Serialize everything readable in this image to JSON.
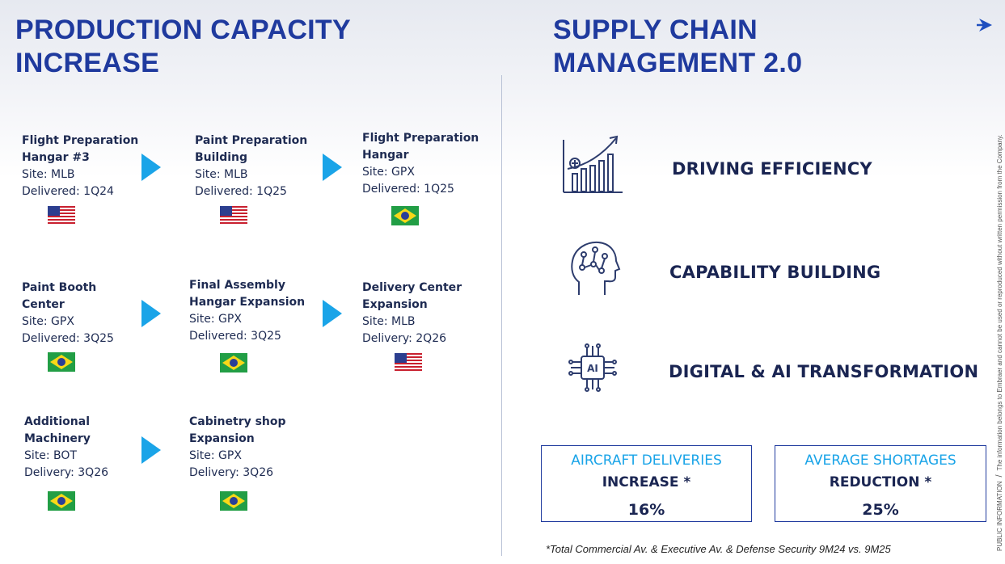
{
  "left_title": [
    "PRODUCTION CAPACITY",
    "INCREASE"
  ],
  "right_title": [
    "SUPPLY CHAIN",
    "MANAGEMENT 2.0"
  ],
  "nav": {
    "next_icon": "arrow-right-icon"
  },
  "projects": [
    {
      "name": [
        "Flight Preparation",
        "Hangar #3"
      ],
      "site": "Site: MLB",
      "date": "Delivered: 1Q24",
      "flag": "us-flag-icon"
    },
    {
      "name": [
        "Paint Preparation",
        "Building"
      ],
      "site": "Site: MLB",
      "date": "Delivered: 1Q25",
      "flag": "us-flag-icon"
    },
    {
      "name": [
        "Flight Preparation",
        "Hangar"
      ],
      "site": "Site: GPX",
      "date": "Delivered: 1Q25",
      "flag": "brazil-flag-icon"
    },
    {
      "name": [
        "Paint Booth",
        "Center"
      ],
      "site": "Site: GPX",
      "date": "Delivered: 3Q25",
      "flag": "brazil-flag-icon"
    },
    {
      "name": [
        "Final Assembly",
        "Hangar Expansion"
      ],
      "site": "Site: GPX",
      "date": "Delivered: 3Q25",
      "flag": "brazil-flag-icon"
    },
    {
      "name": [
        "Delivery Center",
        "Expansion"
      ],
      "site": "Site: MLB",
      "date": "Delivery: 2Q26",
      "flag": "us-flag-icon"
    },
    {
      "name": [
        "Additional",
        "Machinery"
      ],
      "site": "Site: BOT",
      "date": "Delivery: 3Q26",
      "flag": "brazil-flag-icon"
    },
    {
      "name": [
        "Cabinetry shop",
        "Expansion"
      ],
      "site": "Site: GPX",
      "date": "Delivery: 3Q26",
      "flag": "brazil-flag-icon"
    }
  ],
  "features": [
    {
      "label": "DRIVING EFFICIENCY",
      "icon": "growth-chart-icon"
    },
    {
      "label": "CAPABILITY BUILDING",
      "icon": "brain-circuit-icon"
    },
    {
      "label": "DIGITAL & AI TRANSFORMATION",
      "icon": "ai-chip-icon"
    }
  ],
  "kpis": [
    {
      "head": "AIRCRAFT DELIVERIES",
      "sub": "INCREASE *",
      "value": "16%"
    },
    {
      "head": "AVERAGE SHORTAGES",
      "sub": "REDUCTION *",
      "value": "25%"
    }
  ],
  "footnote": "*Total Commercial Av. & Executive Av. & Defense Security 9M24 vs. 9M25",
  "side_note": {
    "classification": "PUBLIC INFORMATION",
    "separator": "/",
    "text": "The information belongs to Embraer and cannot be used or reproduced without written permission from the Company."
  },
  "colors": {
    "title": "#1f3a9e",
    "accent": "#1aa4e8",
    "text": "#1a2552"
  }
}
